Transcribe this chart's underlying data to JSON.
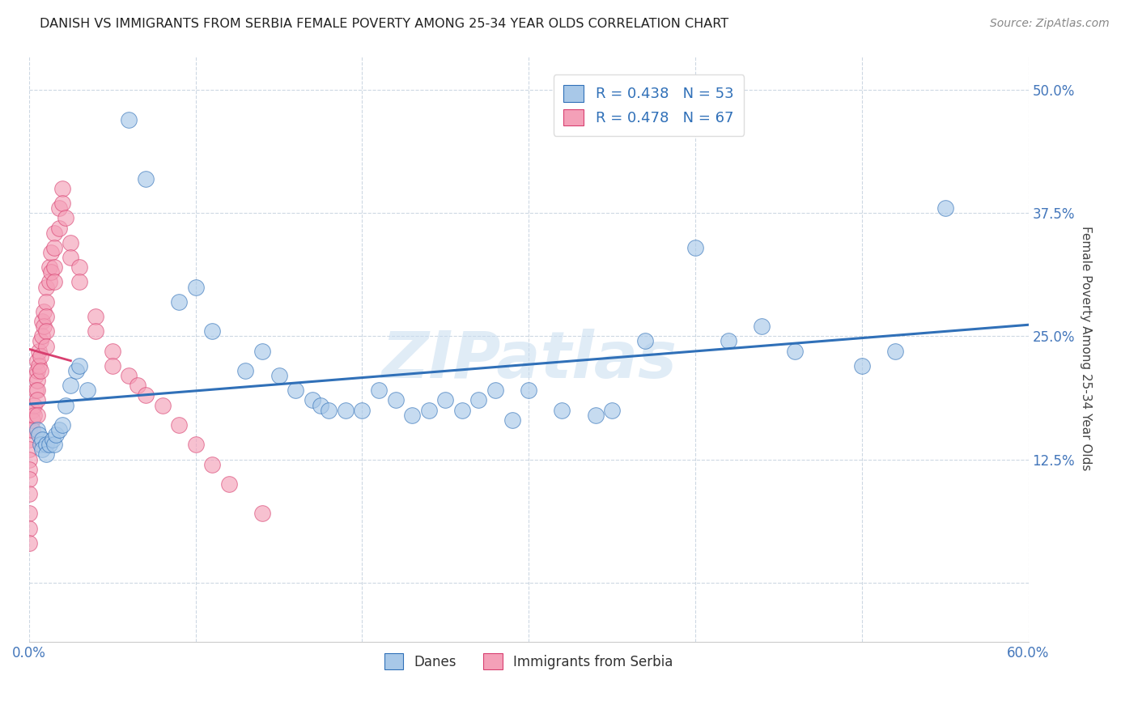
{
  "title": "DANISH VS IMMIGRANTS FROM SERBIA FEMALE POVERTY AMONG 25-34 YEAR OLDS CORRELATION CHART",
  "source": "Source: ZipAtlas.com",
  "ylabel": "Female Poverty Among 25-34 Year Olds",
  "xlim": [
    0.0,
    0.6
  ],
  "ylim": [
    -0.06,
    0.535
  ],
  "xticks": [
    0.0,
    0.1,
    0.2,
    0.3,
    0.4,
    0.5,
    0.6
  ],
  "xticklabels": [
    "0.0%",
    "",
    "",
    "",
    "",
    "",
    "60.0%"
  ],
  "yticks": [
    0.0,
    0.125,
    0.25,
    0.375,
    0.5
  ],
  "yticklabels": [
    "",
    "12.5%",
    "25.0%",
    "37.5%",
    "50.0%"
  ],
  "legend_blue_r": "R = 0.438",
  "legend_blue_n": "N = 53",
  "legend_pink_r": "R = 0.478",
  "legend_pink_n": "N = 67",
  "blue_color": "#a8c8e8",
  "pink_color": "#f4a0b8",
  "trend_blue_color": "#3070b8",
  "trend_pink_color": "#d84070",
  "watermark": "ZIPatlas",
  "danes_x": [
    0.005,
    0.006,
    0.007,
    0.008,
    0.008,
    0.01,
    0.01,
    0.012,
    0.014,
    0.015,
    0.016,
    0.018,
    0.02,
    0.022,
    0.025,
    0.028,
    0.03,
    0.035,
    0.06,
    0.07,
    0.09,
    0.1,
    0.11,
    0.13,
    0.14,
    0.15,
    0.16,
    0.17,
    0.175,
    0.18,
    0.19,
    0.2,
    0.21,
    0.22,
    0.23,
    0.24,
    0.25,
    0.26,
    0.27,
    0.28,
    0.29,
    0.3,
    0.32,
    0.34,
    0.35,
    0.37,
    0.4,
    0.42,
    0.44,
    0.46,
    0.5,
    0.52,
    0.55
  ],
  "danes_y": [
    0.155,
    0.15,
    0.14,
    0.145,
    0.135,
    0.14,
    0.13,
    0.14,
    0.145,
    0.14,
    0.15,
    0.155,
    0.16,
    0.18,
    0.2,
    0.215,
    0.22,
    0.195,
    0.47,
    0.41,
    0.285,
    0.3,
    0.255,
    0.215,
    0.235,
    0.21,
    0.195,
    0.185,
    0.18,
    0.175,
    0.175,
    0.175,
    0.195,
    0.185,
    0.17,
    0.175,
    0.185,
    0.175,
    0.185,
    0.195,
    0.165,
    0.195,
    0.175,
    0.17,
    0.175,
    0.245,
    0.34,
    0.245,
    0.26,
    0.235,
    0.22,
    0.235,
    0.38
  ],
  "serbia_x": [
    0.0,
    0.0,
    0.0,
    0.0,
    0.0,
    0.0,
    0.0,
    0.0,
    0.0,
    0.0,
    0.002,
    0.002,
    0.002,
    0.003,
    0.003,
    0.004,
    0.004,
    0.005,
    0.005,
    0.005,
    0.005,
    0.005,
    0.005,
    0.006,
    0.006,
    0.007,
    0.007,
    0.007,
    0.008,
    0.008,
    0.009,
    0.009,
    0.01,
    0.01,
    0.01,
    0.01,
    0.01,
    0.012,
    0.012,
    0.013,
    0.013,
    0.015,
    0.015,
    0.015,
    0.015,
    0.018,
    0.018,
    0.02,
    0.02,
    0.022,
    0.025,
    0.025,
    0.03,
    0.03,
    0.04,
    0.04,
    0.05,
    0.05,
    0.06,
    0.065,
    0.07,
    0.08,
    0.09,
    0.1,
    0.11,
    0.12,
    0.14
  ],
  "serbia_y": [
    0.155,
    0.145,
    0.135,
    0.125,
    0.115,
    0.105,
    0.09,
    0.07,
    0.055,
    0.04,
    0.175,
    0.165,
    0.155,
    0.18,
    0.17,
    0.21,
    0.195,
    0.225,
    0.215,
    0.205,
    0.195,
    0.185,
    0.17,
    0.235,
    0.22,
    0.245,
    0.23,
    0.215,
    0.265,
    0.25,
    0.275,
    0.26,
    0.3,
    0.285,
    0.27,
    0.255,
    0.24,
    0.32,
    0.305,
    0.335,
    0.315,
    0.355,
    0.34,
    0.32,
    0.305,
    0.38,
    0.36,
    0.4,
    0.385,
    0.37,
    0.345,
    0.33,
    0.32,
    0.305,
    0.27,
    0.255,
    0.235,
    0.22,
    0.21,
    0.2,
    0.19,
    0.18,
    0.16,
    0.14,
    0.12,
    0.1,
    0.07
  ]
}
